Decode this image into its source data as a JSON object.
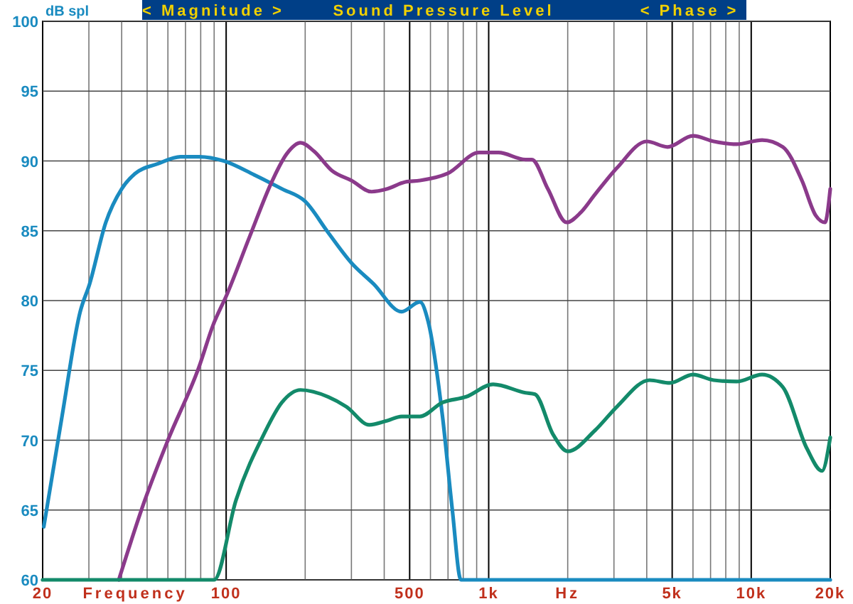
{
  "chart_data": {
    "type": "line",
    "title": "Sound Pressure Level",
    "ylabel": "dB spl",
    "xlabel": "Frequency",
    "annotations": [
      "< Magnitude >",
      "< Phase >",
      "Hz"
    ],
    "log": "x",
    "grid": true,
    "line_style": "solid",
    "marker": "none",
    "xlim": [
      20,
      20000
    ],
    "ylim": [
      60,
      100
    ],
    "yticks": [
      60,
      65,
      70,
      75,
      80,
      85,
      90,
      95,
      100
    ],
    "xticks": [
      20,
      {
        "value": 30,
        "label": null
      },
      {
        "value": 40,
        "label": null
      },
      {
        "value": 50,
        "label": null
      },
      {
        "value": 60,
        "label": null
      },
      {
        "value": 70,
        "label": null
      },
      {
        "value": 80,
        "label": null
      },
      {
        "value": 90,
        "label": null
      },
      100,
      {
        "value": 200,
        "label": null
      },
      {
        "value": 300,
        "label": null
      },
      {
        "value": 400,
        "label": null
      },
      500,
      {
        "value": 600,
        "label": null
      },
      {
        "value": 700,
        "label": null
      },
      {
        "value": 800,
        "label": null
      },
      {
        "value": 900,
        "label": null
      },
      {
        "value": 1000,
        "label": "1k"
      },
      {
        "value": 2000,
        "label": null
      },
      {
        "value": 3000,
        "label": null
      },
      {
        "value": 4000,
        "label": null
      },
      {
        "value": 5000,
        "label": "5k"
      },
      {
        "value": 6000,
        "label": null
      },
      {
        "value": 7000,
        "label": null
      },
      {
        "value": 8000,
        "label": null
      },
      {
        "value": 9000,
        "label": null
      },
      {
        "value": 10000,
        "label": "10k"
      },
      {
        "value": 20000,
        "label": "20k"
      }
    ],
    "series": [
      {
        "color": "#1a8bc0",
        "x": [
          20.2,
          23.7,
          27.8,
          30.2,
          34.8,
          40,
          45,
          55,
          67,
          79,
          98,
          128,
          163,
          200,
          244,
          300,
          364,
          466,
          547,
          588,
          667,
          727,
          784,
          20000
        ],
        "values": [
          63.8,
          71.7,
          79.2,
          81.2,
          85.6,
          88.0,
          89.1,
          89.8,
          90.3,
          90.3,
          90.0,
          89.0,
          88.0,
          87.1,
          84.9,
          82.7,
          81.2,
          79.2,
          79.9,
          78.5,
          71.7,
          65.0,
          60,
          60
        ]
      },
      {
        "color": "#8b3a8b",
        "x": [
          39,
          49,
          60,
          79,
          89,
          101,
          123,
          150,
          170,
          192,
          216,
          253,
          300,
          358,
          411,
          482,
          547,
          697,
          920,
          1090,
          1380,
          1460,
          1680,
          1980,
          2240,
          2540,
          3080,
          4000,
          4800,
          6000,
          7200,
          8800,
          11000,
          13200,
          15600,
          17600,
          19100,
          20000
        ],
        "values": [
          60,
          65.7,
          70.0,
          75.3,
          78.2,
          80.5,
          84.6,
          88.6,
          90.5,
          91.3,
          90.7,
          89.3,
          88.6,
          87.8,
          88.0,
          88.5,
          88.6,
          89.1,
          90.6,
          90.6,
          90.1,
          90.1,
          88.0,
          85.6,
          86.3,
          87.6,
          89.5,
          91.4,
          91.0,
          91.8,
          91.4,
          91.2,
          91.5,
          91.0,
          88.6,
          86.1,
          85.6,
          88.0
        ]
      },
      {
        "color": "#138a6a",
        "x": [
          20,
          90,
          109,
          139,
          163,
          192,
          245,
          287,
          351,
          411,
          466,
          547,
          667,
          818,
          1040,
          1380,
          1500,
          1760,
          2000,
          2540,
          3080,
          4100,
          4900,
          6000,
          7200,
          8800,
          11000,
          13200,
          16300,
          18600,
          20000
        ],
        "values": [
          60,
          60,
          65.7,
          70.4,
          72.7,
          73.6,
          73.1,
          72.4,
          71.1,
          71.4,
          71.7,
          71.7,
          72.7,
          73.1,
          74.0,
          73.4,
          73.3,
          70.4,
          69.2,
          70.7,
          72.4,
          74.3,
          74.1,
          74.7,
          74.3,
          74.2,
          74.7,
          73.8,
          69.4,
          67.8,
          70.2
        ]
      }
    ]
  }
}
